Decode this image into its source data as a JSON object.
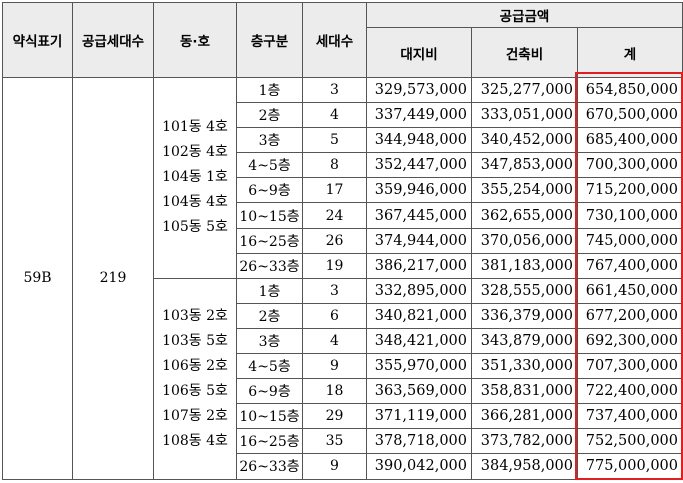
{
  "headers": {
    "type": "약식표기",
    "supply_units": "공급세대수",
    "dong_ho": "동·호",
    "floor": "층구분",
    "units": "세대수",
    "price": "공급금액",
    "land": "대지비",
    "building": "건축비",
    "total": "계"
  },
  "type": "59B",
  "supply_units": "219",
  "groups": [
    {
      "units": [
        "101동 4호",
        "102동 4호",
        "104동 1호",
        "104동 4호",
        "105동 5호"
      ],
      "rows": [
        {
          "floor": "1층",
          "count": "3",
          "land": "329,573,000",
          "building": "325,277,000",
          "total": "654,850,000"
        },
        {
          "floor": "2층",
          "count": "4",
          "land": "337,449,000",
          "building": "333,051,000",
          "total": "670,500,000"
        },
        {
          "floor": "3층",
          "count": "5",
          "land": "344,948,000",
          "building": "340,452,000",
          "total": "685,400,000"
        },
        {
          "floor": "4~5층",
          "count": "8",
          "land": "352,447,000",
          "building": "347,853,000",
          "total": "700,300,000"
        },
        {
          "floor": "6~9층",
          "count": "17",
          "land": "359,946,000",
          "building": "355,254,000",
          "total": "715,200,000"
        },
        {
          "floor": "10~15층",
          "count": "24",
          "land": "367,445,000",
          "building": "362,655,000",
          "total": "730,100,000"
        },
        {
          "floor": "16~25층",
          "count": "26",
          "land": "374,944,000",
          "building": "370,056,000",
          "total": "745,000,000"
        },
        {
          "floor": "26~33층",
          "count": "19",
          "land": "386,217,000",
          "building": "381,183,000",
          "total": "767,400,000"
        }
      ]
    },
    {
      "units": [
        "103동 2호",
        "103동 5호",
        "106동 2호",
        "106동 5호",
        "107동 2호",
        "108동 4호"
      ],
      "rows": [
        {
          "floor": "1층",
          "count": "3",
          "land": "332,895,000",
          "building": "328,555,000",
          "total": "661,450,000"
        },
        {
          "floor": "2층",
          "count": "6",
          "land": "340,821,000",
          "building": "336,379,000",
          "total": "677,200,000"
        },
        {
          "floor": "3층",
          "count": "4",
          "land": "348,421,000",
          "building": "343,879,000",
          "total": "692,300,000"
        },
        {
          "floor": "4~5층",
          "count": "9",
          "land": "355,970,000",
          "building": "351,330,000",
          "total": "707,300,000"
        },
        {
          "floor": "6~9층",
          "count": "18",
          "land": "363,569,000",
          "building": "358,831,000",
          "total": "722,400,000"
        },
        {
          "floor": "10~15층",
          "count": "29",
          "land": "371,119,000",
          "building": "366,281,000",
          "total": "737,400,000"
        },
        {
          "floor": "16~25층",
          "count": "35",
          "land": "378,718,000",
          "building": "373,782,000",
          "total": "752,500,000"
        },
        {
          "floor": "26~33층",
          "count": "9",
          "land": "390,042,000",
          "building": "384,958,000",
          "total": "775,000,000"
        }
      ]
    }
  ],
  "highlight_color": "#e02020"
}
